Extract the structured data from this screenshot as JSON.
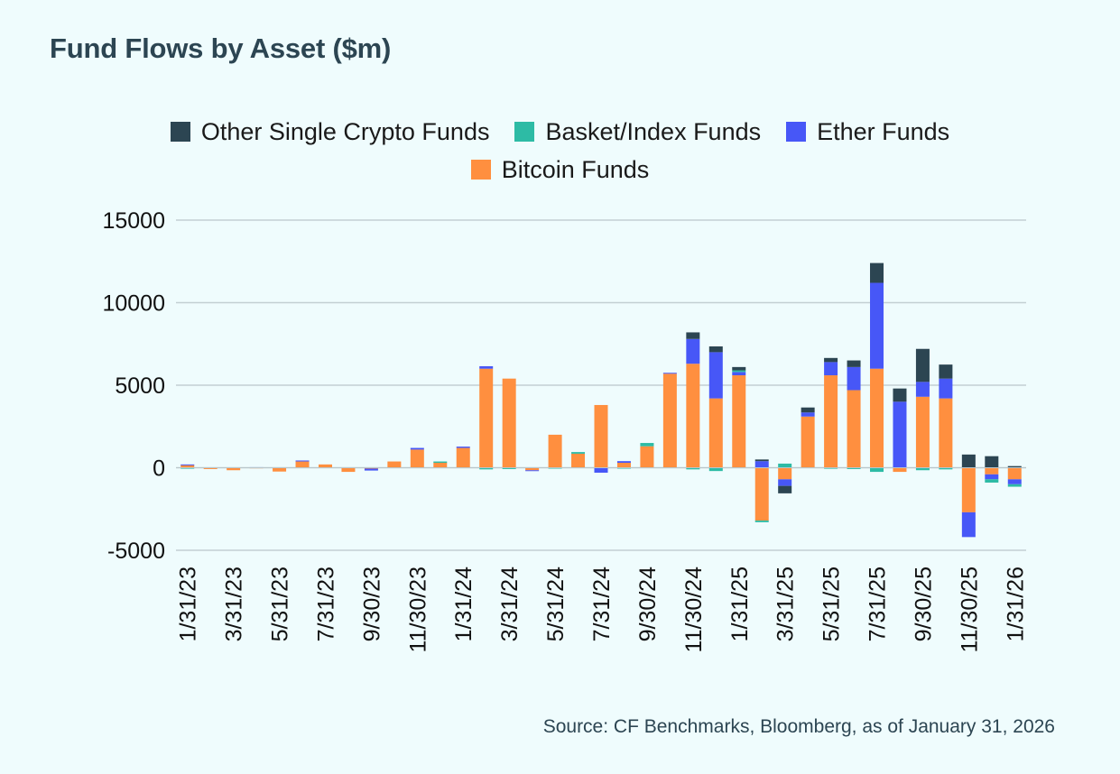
{
  "title": "Fund Flows by Asset ($m)",
  "source": "Source: CF Benchmarks, Bloomberg, as of January 31, 2026",
  "chart_data": {
    "type": "bar",
    "stacked": true,
    "title": "Fund Flows by Asset ($m)",
    "xlabel": "",
    "ylabel": "",
    "ylim": [
      -5000,
      15000
    ],
    "yticks": [
      15000,
      10000,
      5000,
      0,
      -5000
    ],
    "grid": true,
    "legend_position": "top",
    "categories": [
      "1/31/23",
      "2/28/23",
      "3/31/23",
      "4/30/23",
      "5/31/23",
      "6/30/23",
      "7/31/23",
      "8/31/23",
      "9/30/23",
      "10/31/23",
      "11/30/23",
      "12/31/23",
      "1/31/24",
      "2/29/24",
      "3/31/24",
      "4/30/24",
      "5/31/24",
      "6/30/24",
      "7/31/24",
      "8/31/24",
      "9/30/24",
      "10/31/24",
      "11/30/24",
      "12/31/24",
      "1/31/25",
      "2/28/25",
      "3/31/25",
      "4/30/25",
      "5/31/25",
      "6/30/25",
      "7/31/25",
      "8/31/25",
      "9/30/25",
      "10/31/25",
      "11/30/25",
      "12/31/25",
      "1/31/26"
    ],
    "tick_labels": [
      "1/31/23",
      "",
      "3/31/23",
      "",
      "5/31/23",
      "",
      "7/31/23",
      "",
      "9/30/23",
      "",
      "11/30/23",
      "",
      "1/31/24",
      "",
      "3/31/24",
      "",
      "5/31/24",
      "",
      "7/31/24",
      "",
      "9/30/24",
      "",
      "11/30/24",
      "",
      "1/31/25",
      "",
      "3/31/25",
      "",
      "5/31/25",
      "",
      "7/31/25",
      "",
      "9/30/25",
      "",
      "11/30/25",
      "",
      "1/31/26"
    ],
    "series": [
      {
        "name": "Bitcoin Funds",
        "color": "#ff8f3f",
        "values": [
          180,
          -80,
          -150,
          20,
          -230,
          380,
          200,
          -250,
          -50,
          380,
          1100,
          300,
          1200,
          6000,
          5400,
          -150,
          2000,
          850,
          3800,
          300,
          1300,
          5700,
          6300,
          4200,
          5600,
          -3200,
          -700,
          3100,
          5600,
          4700,
          6000,
          -250,
          4300,
          4200,
          -2700,
          -400,
          -700
        ]
      },
      {
        "name": "Ether Funds",
        "color": "#4757f7",
        "values": [
          20,
          0,
          0,
          10,
          0,
          60,
          0,
          0,
          -120,
          0,
          100,
          0,
          80,
          150,
          0,
          -50,
          0,
          0,
          -300,
          100,
          0,
          50,
          1500,
          2800,
          200,
          400,
          -400,
          250,
          800,
          1400,
          5200,
          4000,
          900,
          1200,
          -1500,
          -300,
          -300
        ]
      },
      {
        "name": "Basket/Index Funds",
        "color": "#2dbba5",
        "values": [
          -60,
          0,
          0,
          0,
          0,
          0,
          0,
          0,
          0,
          0,
          0,
          80,
          0,
          -100,
          -80,
          0,
          -50,
          100,
          0,
          -50,
          200,
          0,
          -100,
          -200,
          100,
          -100,
          250,
          0,
          -60,
          -80,
          -250,
          0,
          -150,
          -100,
          0,
          -200,
          -150
        ]
      },
      {
        "name": "Other Single Crypto Funds",
        "color": "#2c4552",
        "values": [
          0,
          0,
          0,
          0,
          0,
          0,
          0,
          0,
          0,
          0,
          0,
          0,
          0,
          0,
          0,
          0,
          0,
          0,
          0,
          0,
          0,
          0,
          400,
          350,
          200,
          100,
          -450,
          300,
          250,
          400,
          1200,
          800,
          2000,
          850,
          800,
          700,
          100
        ]
      }
    ]
  },
  "legend_rows": [
    [
      {
        "label": "Other Single Crypto Funds",
        "color": "#2c4552"
      },
      {
        "label": "Basket/Index Funds",
        "color": "#2dbba5"
      },
      {
        "label": "Ether Funds",
        "color": "#4757f7"
      }
    ],
    [
      {
        "label": "Bitcoin Funds",
        "color": "#ff8f3f"
      }
    ]
  ]
}
